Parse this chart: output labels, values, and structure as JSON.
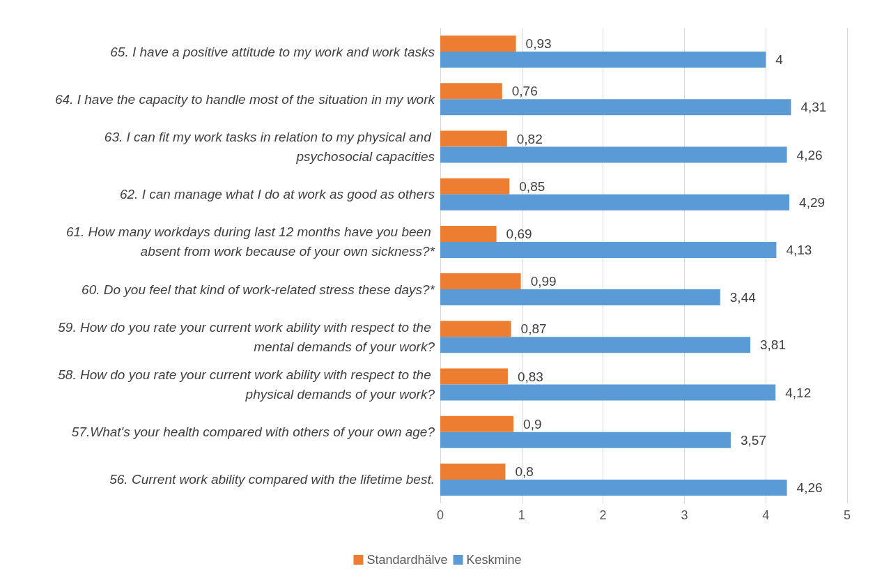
{
  "chart_data": {
    "type": "bar",
    "orientation": "horizontal",
    "categories": [
      "65. I have a positive attitude to my work and work tasks",
      "64. I have the capacity to handle most of the situation in my work",
      "63. I can fit my work tasks in relation to my physical and psychosocial capacities",
      "62. I can manage what I do at work as good as others",
      "61. How many workdays during last 12 months have you been absent from work because of your own sickness?*",
      "60. Do you feel that kind of work-related stress these days?*",
      "59. How do you rate your current work ability with respect to the mental demands of your work?",
      "58. How do you rate your current work ability with respect to the physical demands of your work?",
      "57.What's your health compared with others of your own age?",
      "56. Current work ability compared with the lifetime best."
    ],
    "series": [
      {
        "name": "Standardhälve",
        "color": "#ed7d31",
        "values": [
          0.93,
          0.76,
          0.82,
          0.85,
          0.69,
          0.99,
          0.87,
          0.83,
          0.9,
          0.8
        ],
        "value_labels": [
          "0,93",
          "0,76",
          "0,82",
          "0,85",
          "0,69",
          "0,99",
          "0,87",
          "0,83",
          "0,9",
          "0,8"
        ]
      },
      {
        "name": "Keskmine",
        "color": "#5b9bd5",
        "values": [
          4,
          4.31,
          4.26,
          4.29,
          4.13,
          3.44,
          3.81,
          4.12,
          3.57,
          4.26
        ],
        "value_labels": [
          "4",
          "4,31",
          "4,26",
          "4,29",
          "4,13",
          "3,44",
          "3,81",
          "4,12",
          "3,57",
          "4,26"
        ]
      }
    ],
    "xlim": [
      0,
      5
    ],
    "xticks": [
      0,
      1,
      2,
      3,
      4,
      5
    ],
    "grid": "x",
    "legend": "bottom"
  }
}
